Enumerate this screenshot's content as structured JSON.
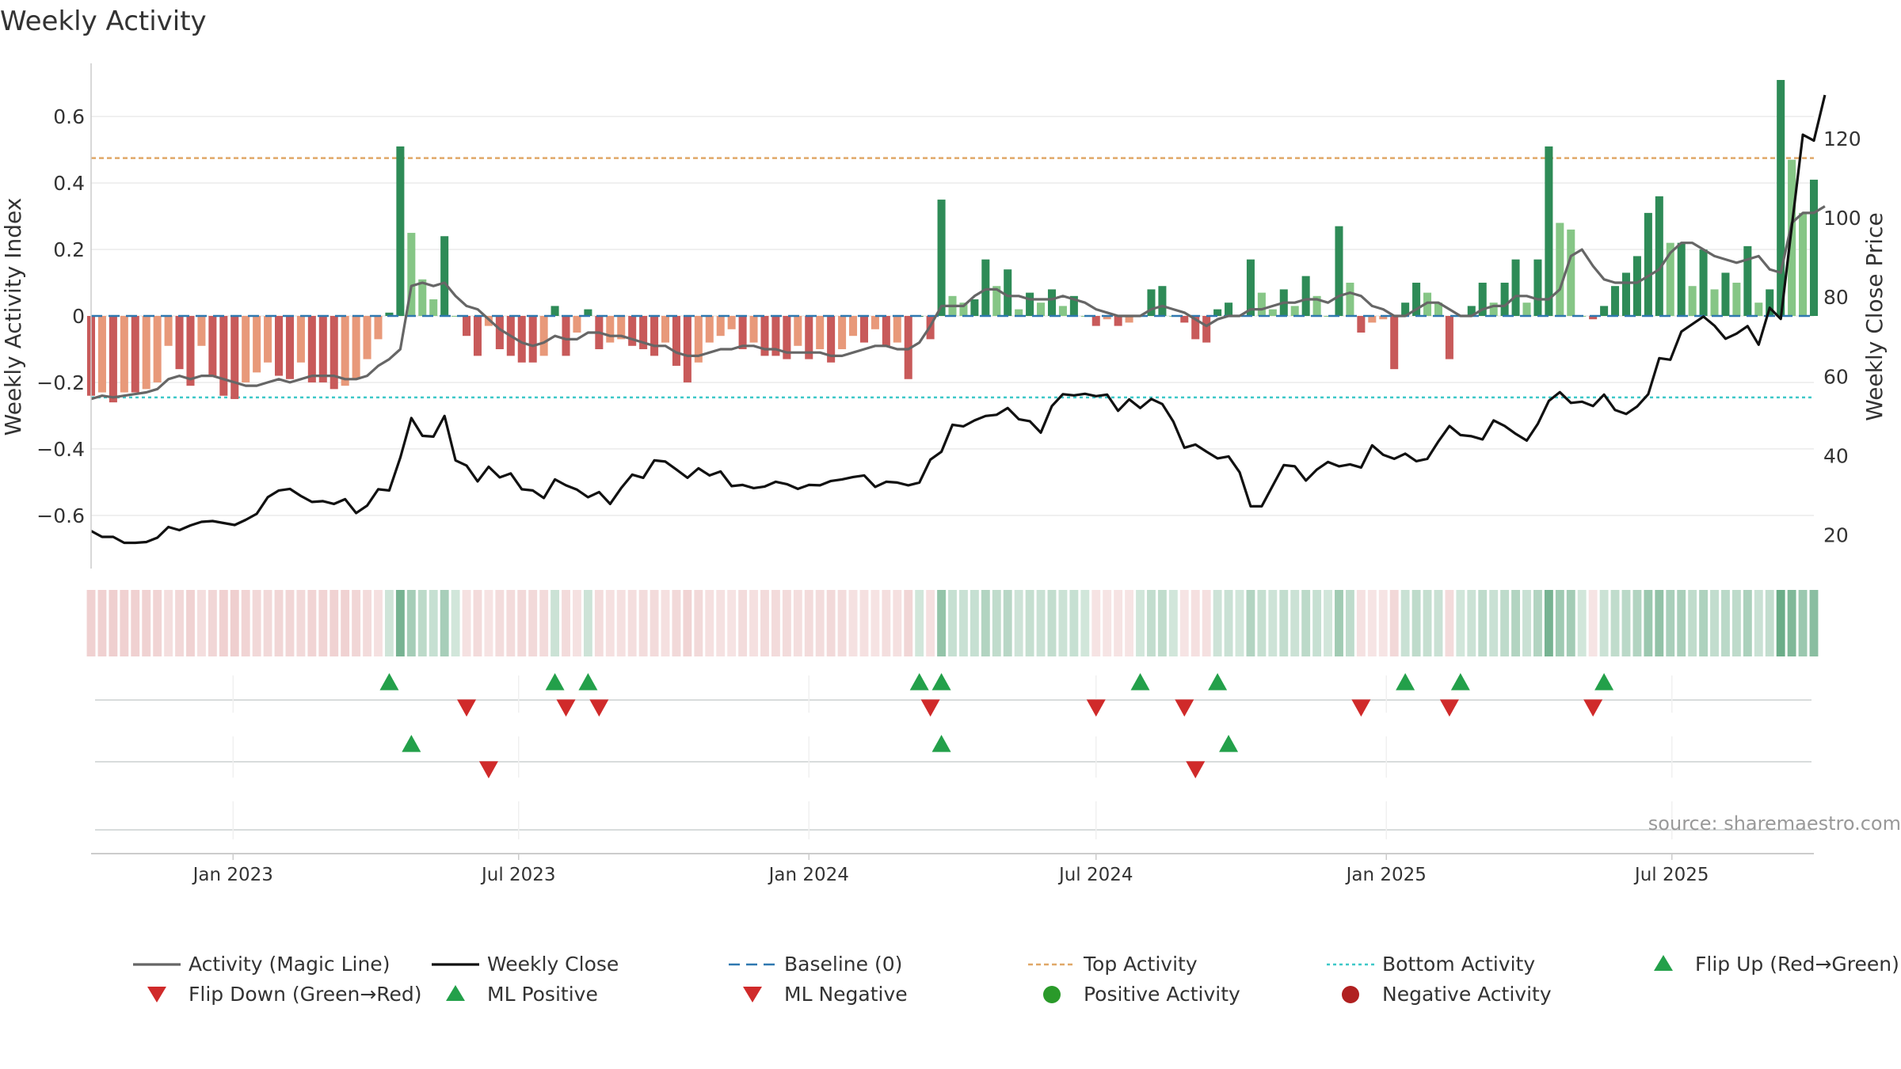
{
  "chart_data": {
    "type": "bar",
    "title": "Weekly Activity",
    "ylabel": "Weekly Activity Index",
    "y2label": "Weekly Close Price",
    "ylim": [
      -0.76,
      0.76
    ],
    "y2lim": [
      11.5,
      139.0
    ],
    "yticks": [
      0.6,
      0.4,
      0.2,
      0,
      -0.2,
      -0.4,
      -0.6
    ],
    "yticklabels": [
      "0.6",
      "0.4",
      "0.2",
      "0",
      "−0.2",
      "−0.4",
      "−0.6"
    ],
    "y2ticks": [
      120,
      100,
      80,
      60,
      40,
      20
    ],
    "y2ticklabels": [
      "120",
      "100",
      "80",
      "60",
      "40",
      "20"
    ],
    "x_start": "2022-10-03",
    "x_end": "2025-09-29",
    "xticks": [
      {
        "date": "2023-01-01",
        "label": "Jan 2023"
      },
      {
        "date": "2023-07-01",
        "label": "Jul 2023"
      },
      {
        "date": "2024-01-01",
        "label": "Jan 2024"
      },
      {
        "date": "2024-07-01",
        "label": "Jul 2024"
      },
      {
        "date": "2025-01-01",
        "label": "Jan 2025"
      },
      {
        "date": "2025-07-01",
        "label": "Jul 2025"
      }
    ],
    "top_activity": 0.475,
    "bottom_activity": -0.245,
    "source": "source: sharemaestro.com",
    "legend": [
      {
        "key": "magic",
        "label": "Activity (Magic Line)"
      },
      {
        "key": "close",
        "label": "Weekly Close"
      },
      {
        "key": "baseline",
        "label": "Baseline (0)"
      },
      {
        "key": "top",
        "label": "Top Activity"
      },
      {
        "key": "bottom",
        "label": "Bottom Activity"
      },
      {
        "key": "flipup",
        "label": "Flip Up (Red→Green)"
      },
      {
        "key": "flipdown",
        "label": "Flip Down (Green→Red)"
      },
      {
        "key": "mlpos",
        "label": "ML Positive"
      },
      {
        "key": "mlneg",
        "label": "ML Negative"
      },
      {
        "key": "posact",
        "label": "Positive Activity"
      },
      {
        "key": "negact",
        "label": "Negative Activity"
      }
    ],
    "colors": {
      "pos_strong": "#2e8b57",
      "pos_light": "#86c686",
      "neg_strong": "#c85a5a",
      "neg_light": "#e8997a",
      "magic": "#666666",
      "close": "#111111",
      "baseline": "#2f78b0",
      "top": "#e0a868",
      "bottom": "#3ec8c8",
      "flip_up": "#23a04a",
      "flip_down": "#d02a2a",
      "pos_dot": "#2a9a2a",
      "neg_dot": "#b02020",
      "grid": "#ebebeb",
      "axis": "#cccccc",
      "text": "#333333"
    },
    "activity": [
      -0.24,
      -0.23,
      -0.26,
      -0.23,
      -0.23,
      -0.22,
      -0.2,
      -0.09,
      -0.16,
      -0.21,
      -0.09,
      -0.18,
      -0.24,
      -0.25,
      -0.2,
      -0.17,
      -0.14,
      -0.18,
      -0.19,
      -0.14,
      -0.2,
      -0.2,
      -0.22,
      -0.21,
      -0.19,
      -0.13,
      -0.07,
      0.01,
      0.51,
      0.25,
      0.11,
      0.05,
      0.24,
      0.0,
      -0.06,
      -0.12,
      -0.03,
      -0.1,
      -0.12,
      -0.14,
      -0.14,
      -0.12,
      0.03,
      -0.12,
      -0.05,
      0.02,
      -0.1,
      -0.08,
      -0.07,
      -0.09,
      -0.1,
      -0.12,
      -0.08,
      -0.15,
      -0.2,
      -0.14,
      -0.08,
      -0.06,
      -0.04,
      -0.1,
      -0.08,
      -0.12,
      -0.12,
      -0.13,
      -0.09,
      -0.13,
      -0.1,
      -0.14,
      -0.1,
      -0.06,
      -0.08,
      -0.04,
      -0.09,
      -0.08,
      -0.19,
      0.0,
      -0.07,
      0.35,
      0.06,
      0.04,
      0.05,
      0.17,
      0.09,
      0.14,
      0.02,
      0.07,
      0.04,
      0.08,
      0.03,
      0.06,
      0.0,
      -0.03,
      -0.01,
      -0.03,
      -0.02,
      0.0,
      0.08,
      0.09,
      0.0,
      -0.02,
      -0.07,
      -0.08,
      0.02,
      0.04,
      0.0,
      0.17,
      0.07,
      0.02,
      0.08,
      0.03,
      0.12,
      0.06,
      0.0,
      0.27,
      0.1,
      -0.05,
      -0.02,
      -0.01,
      -0.16,
      0.04,
      0.1,
      0.07,
      0.04,
      -0.13,
      0.0,
      0.03,
      0.1,
      0.04,
      0.1,
      0.17,
      0.04,
      0.17,
      0.51,
      0.28,
      0.26,
      0.0,
      -0.01,
      0.03,
      0.09,
      0.13,
      0.18,
      0.31,
      0.36,
      0.22,
      0.22,
      0.09,
      0.2,
      0.08,
      0.13,
      0.1,
      0.21,
      0.04,
      0.08,
      0.71,
      0.47,
      0.31,
      0.41
    ],
    "magic": [
      -0.25,
      -0.24,
      -0.245,
      -0.24,
      -0.235,
      -0.23,
      -0.22,
      -0.19,
      -0.18,
      -0.19,
      -0.18,
      -0.18,
      -0.19,
      -0.2,
      -0.21,
      -0.21,
      -0.2,
      -0.19,
      -0.2,
      -0.19,
      -0.18,
      -0.18,
      -0.18,
      -0.19,
      -0.19,
      -0.18,
      -0.15,
      -0.13,
      -0.1,
      0.09,
      0.1,
      0.09,
      0.1,
      0.06,
      0.03,
      0.02,
      -0.01,
      -0.04,
      -0.06,
      -0.08,
      -0.09,
      -0.08,
      -0.06,
      -0.07,
      -0.07,
      -0.05,
      -0.05,
      -0.06,
      -0.06,
      -0.07,
      -0.08,
      -0.09,
      -0.09,
      -0.11,
      -0.12,
      -0.12,
      -0.11,
      -0.1,
      -0.1,
      -0.09,
      -0.09,
      -0.1,
      -0.1,
      -0.11,
      -0.11,
      -0.11,
      -0.11,
      -0.12,
      -0.12,
      -0.11,
      -0.1,
      -0.09,
      -0.09,
      -0.1,
      -0.1,
      -0.08,
      -0.03,
      0.03,
      0.03,
      0.03,
      0.06,
      0.08,
      0.08,
      0.06,
      0.06,
      0.05,
      0.05,
      0.05,
      0.06,
      0.05,
      0.04,
      0.02,
      0.01,
      0.0,
      0.0,
      0.0,
      0.02,
      0.03,
      0.02,
      0.01,
      -0.01,
      -0.03,
      -0.01,
      0.0,
      0.0,
      0.02,
      0.02,
      0.03,
      0.04,
      0.04,
      0.05,
      0.05,
      0.04,
      0.06,
      0.07,
      0.06,
      0.03,
      0.02,
      0.0,
      0.0,
      0.02,
      0.04,
      0.04,
      0.02,
      0.0,
      0.0,
      0.02,
      0.03,
      0.03,
      0.06,
      0.06,
      0.05,
      0.05,
      0.08,
      0.18,
      0.2,
      0.15,
      0.11,
      0.1,
      0.1,
      0.1,
      0.12,
      0.14,
      0.19,
      0.22,
      0.22,
      0.2,
      0.18,
      0.17,
      0.16,
      0.17,
      0.18,
      0.14,
      0.13,
      0.28,
      0.31,
      0.31,
      0.33
    ],
    "close": [
      21,
      19.5,
      19.5,
      18,
      18,
      18.2,
      19.3,
      22,
      21.2,
      22.4,
      23.3,
      23.5,
      23,
      22.5,
      23.8,
      25.3,
      29.5,
      31.2,
      31.6,
      29.8,
      28.3,
      28.5,
      27.8,
      29,
      25.5,
      27.4,
      31.5,
      31.2,
      39.5,
      49.5,
      45,
      44.8,
      50,
      38.8,
      37.5,
      33.5,
      37.2,
      34.5,
      35.5,
      31.5,
      31.2,
      29.3,
      34,
      32.5,
      31.4,
      29.5,
      30.8,
      27.8,
      31.8,
      35.2,
      34.4,
      38.8,
      38.5,
      36.5,
      34.4,
      36.8,
      35,
      36,
      32.3,
      32.6,
      31.8,
      32.2,
      33.4,
      32.8,
      31.6,
      32.6,
      32.5,
      33.6,
      34,
      34.6,
      35,
      32.1,
      33.4,
      33.2,
      32.5,
      33.2,
      39,
      41,
      47.8,
      47.4,
      48.9,
      50,
      50.3,
      52,
      49.2,
      48.7,
      45.8,
      52.5,
      55.5,
      55.2,
      55.6,
      55,
      55.4,
      51.3,
      54.2,
      52,
      54.3,
      53,
      48.6,
      42,
      42.8,
      41,
      39.3,
      39.8,
      35.8,
      27.2,
      27.2,
      32.4,
      37.6,
      37.3,
      33.7,
      36.5,
      38.4,
      37.3,
      37.8,
      37,
      42.6,
      40.2,
      39.2,
      40.5,
      38.6,
      39.2,
      43.6,
      47.5,
      45.2,
      44.9,
      44.1,
      48.9,
      47.5,
      45.5,
      43.8,
      48,
      53.8,
      56,
      53.3,
      53.6,
      52.5,
      55.4,
      51.5,
      50.5,
      52.4,
      55.5,
      64.6,
      64.2,
      71.3,
      73.2,
      75.1,
      72.8,
      69.5,
      70.8,
      72.7,
      68,
      77.3,
      74.5,
      97.8,
      121,
      119.5,
      131
    ]
  }
}
